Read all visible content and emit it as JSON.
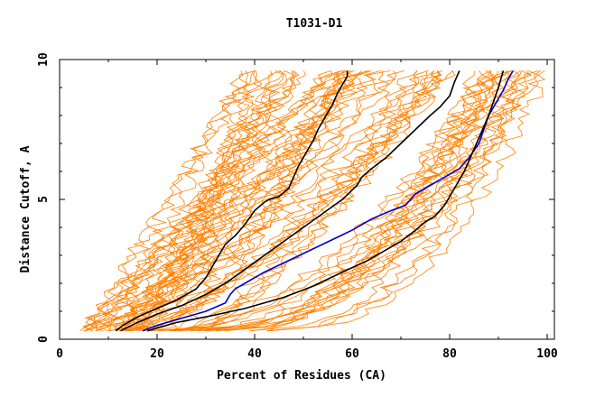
{
  "chart_data": {
    "type": "line",
    "title": "T1031-D1",
    "xlabel": "Percent of Residues (CA)",
    "ylabel": "Distance Cutoff, A",
    "xlim": [
      0,
      100
    ],
    "ylim": [
      0,
      10
    ],
    "xticks": [
      0,
      20,
      40,
      60,
      80,
      100
    ],
    "yticks": [
      0,
      5,
      10
    ],
    "grid": false,
    "colors": {
      "background_models": "#ff8000",
      "highlight_black": "#000000",
      "highlight_blue": "#0000cc"
    },
    "background_model_count": 70,
    "highlight_series": [
      {
        "color": "#000000",
        "x": [
          11.5,
          13,
          16,
          20,
          24,
          28,
          30,
          32,
          33,
          34,
          36,
          38,
          40,
          42,
          43,
          45,
          47,
          48,
          49,
          50,
          51,
          52,
          53,
          54,
          55,
          56,
          57,
          58,
          59,
          59
        ],
        "y": [
          0.3,
          0.5,
          0.8,
          1.1,
          1.4,
          1.8,
          2.2,
          2.8,
          3.1,
          3.4,
          3.7,
          4.1,
          4.6,
          4.9,
          5.0,
          5.1,
          5.4,
          5.8,
          6.2,
          6.5,
          6.8,
          7.1,
          7.5,
          7.8,
          8.1,
          8.4,
          8.8,
          9.1,
          9.4,
          9.6
        ]
      },
      {
        "color": "#000000",
        "x": [
          12.5,
          16,
          20,
          25,
          30,
          34,
          38,
          42,
          46,
          50,
          54,
          58,
          61,
          62,
          64,
          67,
          70,
          73,
          76,
          78,
          80,
          81,
          82
        ],
        "y": [
          0.3,
          0.6,
          0.9,
          1.2,
          1.6,
          2.0,
          2.5,
          3.0,
          3.5,
          4.0,
          4.5,
          5.0,
          5.5,
          5.8,
          6.1,
          6.5,
          7.0,
          7.5,
          8.0,
          8.3,
          8.7,
          9.2,
          9.6
        ]
      },
      {
        "color": "#0000cc",
        "x": [
          17,
          20,
          24,
          30,
          34,
          35,
          36,
          38,
          42,
          48,
          54,
          60,
          64,
          68,
          71,
          73,
          76,
          79,
          82,
          84,
          86,
          87,
          88,
          89,
          90,
          91,
          92,
          93
        ],
        "y": [
          0.3,
          0.5,
          0.7,
          1.0,
          1.3,
          1.6,
          1.8,
          2.0,
          2.4,
          2.9,
          3.4,
          3.9,
          4.3,
          4.6,
          4.8,
          5.2,
          5.5,
          5.8,
          6.1,
          6.5,
          7.0,
          7.5,
          8.0,
          8.3,
          8.6,
          8.9,
          9.3,
          9.6
        ]
      },
      {
        "color": "#000000",
        "x": [
          18,
          24,
          30,
          38,
          46,
          52,
          58,
          63,
          67,
          70,
          73,
          75,
          77,
          78,
          79,
          80,
          81,
          82,
          83,
          84,
          85,
          86,
          87,
          88,
          89,
          90,
          91
        ],
        "y": [
          0.3,
          0.6,
          0.8,
          1.1,
          1.5,
          1.9,
          2.4,
          2.8,
          3.2,
          3.5,
          3.9,
          4.2,
          4.4,
          4.6,
          4.8,
          5.1,
          5.4,
          5.7,
          6.0,
          6.4,
          6.8,
          7.2,
          7.6,
          8.0,
          8.5,
          9.0,
          9.6
        ]
      }
    ]
  }
}
